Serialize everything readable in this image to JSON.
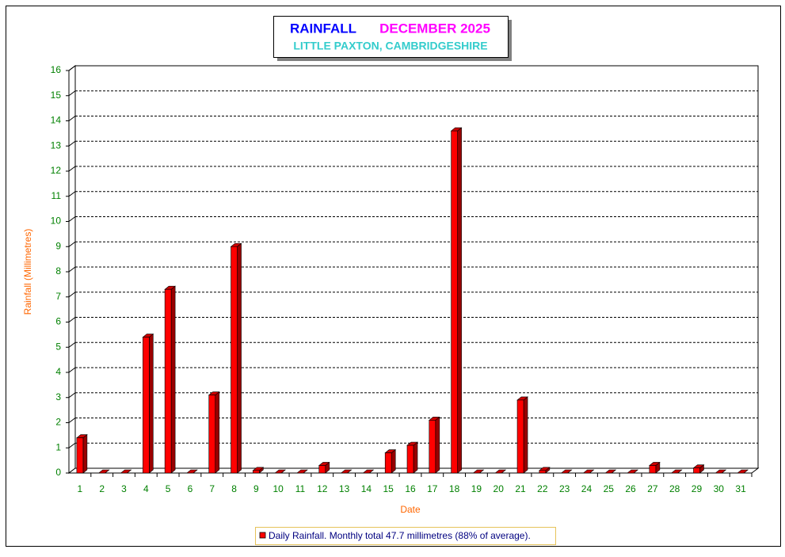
{
  "chart_data": {
    "type": "bar3d",
    "title": "RAINFALL",
    "title_period": "DECEMBER 2025",
    "subtitle": "LITTLE PAXTON, CAMBRIDGESHIRE",
    "x_label": "Date",
    "y_label": "Rainfall  (Millimetres)",
    "categories": [
      "1",
      "2",
      "3",
      "4",
      "5",
      "6",
      "7",
      "8",
      "9",
      "10",
      "11",
      "12",
      "13",
      "14",
      "15",
      "16",
      "17",
      "18",
      "19",
      "20",
      "21",
      "22",
      "23",
      "24",
      "25",
      "26",
      "27",
      "28",
      "29",
      "30",
      "31"
    ],
    "series": [
      {
        "name": "Daily Rainfall. Monthly total 47.7 millimetres (88% of average).",
        "color": "#ff0000",
        "values": [
          1.4,
          0,
          0,
          5.4,
          7.3,
          0,
          3.1,
          9.0,
          0.1,
          0,
          0,
          0.3,
          0,
          0,
          0.8,
          1.1,
          2.1,
          13.6,
          0,
          0,
          2.9,
          0.1,
          0,
          0,
          0,
          0,
          0.3,
          0,
          0.2,
          0,
          0
        ]
      }
    ],
    "ylim": [
      0,
      16
    ],
    "yticks": [
      0,
      1,
      2,
      3,
      4,
      5,
      6,
      7,
      8,
      9,
      10,
      11,
      12,
      13,
      14,
      15,
      16
    ],
    "grid": true
  }
}
